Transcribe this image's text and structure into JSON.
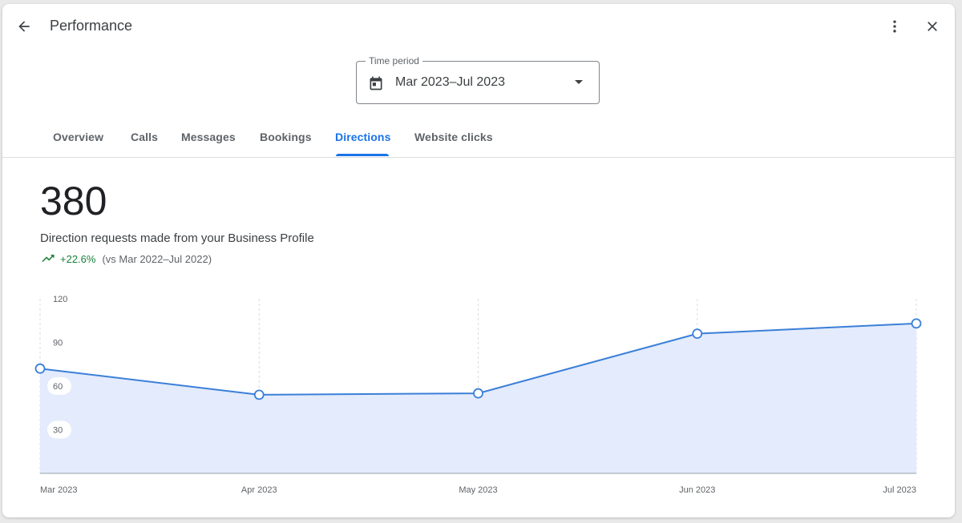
{
  "header": {
    "title": "Performance"
  },
  "time_period": {
    "label": "Time period",
    "value": "Mar 2023–Jul 2023"
  },
  "tabs": [
    {
      "label": "Overview",
      "active": false
    },
    {
      "label": "Calls",
      "active": false
    },
    {
      "label": "Messages",
      "active": false
    },
    {
      "label": "Bookings",
      "active": false
    },
    {
      "label": "Directions",
      "active": true
    },
    {
      "label": "Website clicks",
      "active": false
    }
  ],
  "metric": {
    "value": "380",
    "description": "Direction requests made from your Business Profile",
    "change": "+22.6%",
    "comparison": "(vs Mar 2022–Jul 2022)"
  },
  "colors": {
    "accent": "#1a73e8",
    "line": "#3b7fd8",
    "area": "#e3ebfc",
    "positive": "#188038"
  },
  "chart_data": {
    "type": "area",
    "categories": [
      "Mar 2023",
      "Apr 2023",
      "May 2023",
      "Jun 2023",
      "Jul 2023"
    ],
    "values": [
      72,
      54,
      55,
      96,
      103
    ],
    "ylim": [
      0,
      120
    ],
    "yticks": [
      30,
      60,
      90,
      120
    ],
    "grid": "vertical-dashed"
  }
}
